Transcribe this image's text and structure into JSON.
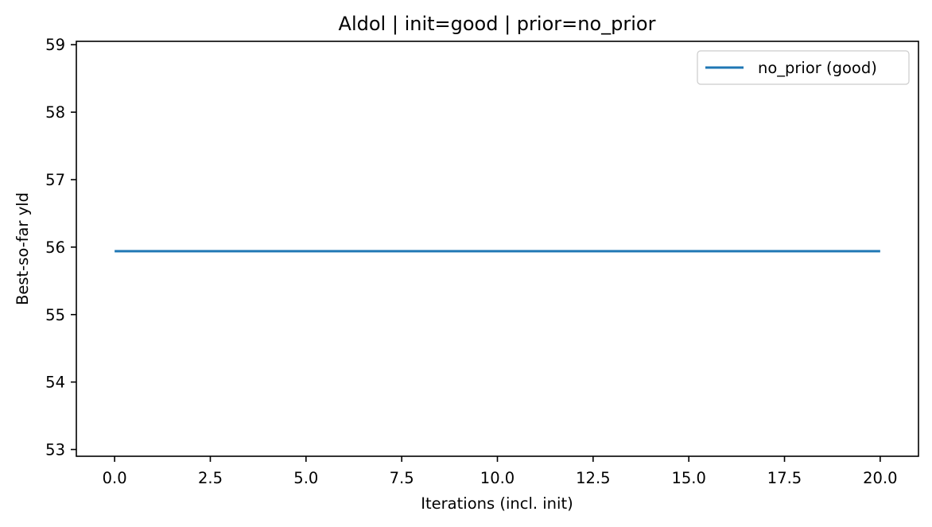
{
  "chart_data": {
    "type": "line",
    "title": "Aldol | init=good | prior=no_prior",
    "xlabel": "Iterations (incl. init)",
    "ylabel": "Best-so-far yld",
    "xlim": [
      -1,
      21
    ],
    "ylim": [
      52.9,
      59.05
    ],
    "x_ticks": [
      0.0,
      2.5,
      5.0,
      7.5,
      10.0,
      12.5,
      15.0,
      17.5,
      20.0
    ],
    "x_tick_labels": [
      "0.0",
      "2.5",
      "5.0",
      "7.5",
      "10.0",
      "12.5",
      "15.0",
      "17.5",
      "20.0"
    ],
    "y_ticks": [
      53,
      54,
      55,
      56,
      57,
      58,
      59
    ],
    "y_tick_labels": [
      "53",
      "54",
      "55",
      "56",
      "57",
      "58",
      "59"
    ],
    "grid": false,
    "legend_position": "top-right",
    "series": [
      {
        "name": "no_prior (good)",
        "color": "#1f77b4",
        "x": [
          0,
          1,
          2,
          3,
          4,
          5,
          6,
          7,
          8,
          9,
          10,
          11,
          12,
          13,
          14,
          15,
          16,
          17,
          18,
          19,
          20
        ],
        "y": [
          55.94,
          55.94,
          55.94,
          55.94,
          55.94,
          55.94,
          55.94,
          55.94,
          55.94,
          55.94,
          55.94,
          55.94,
          55.94,
          55.94,
          55.94,
          55.94,
          55.94,
          55.94,
          55.94,
          55.94,
          55.94
        ]
      }
    ]
  }
}
